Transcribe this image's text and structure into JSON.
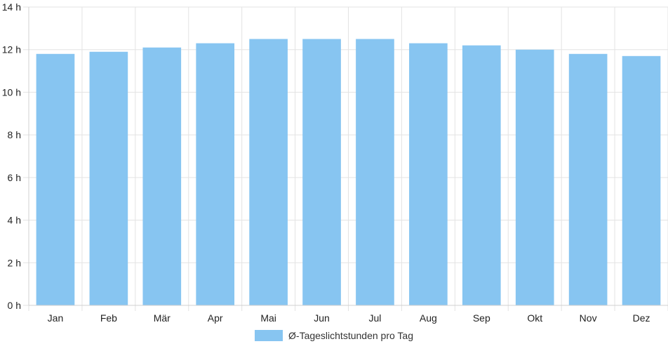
{
  "chart_data": {
    "type": "bar",
    "categories": [
      "Jan",
      "Feb",
      "Mär",
      "Apr",
      "Mai",
      "Jun",
      "Jul",
      "Aug",
      "Sep",
      "Okt",
      "Nov",
      "Dez"
    ],
    "series": [
      {
        "name": "Ø-Tageslichtstunden pro Tag",
        "values": [
          11.8,
          11.9,
          12.1,
          12.3,
          12.5,
          12.5,
          12.5,
          12.3,
          12.2,
          12.0,
          11.8,
          11.7
        ],
        "color": "#87c5f1"
      }
    ],
    "y_ticks": [
      "0 h",
      "2 h",
      "4 h",
      "6 h",
      "8 h",
      "10 h",
      "12 h",
      "14 h"
    ],
    "ylim": [
      0,
      14
    ],
    "grid": true,
    "legend_position": "bottom"
  }
}
